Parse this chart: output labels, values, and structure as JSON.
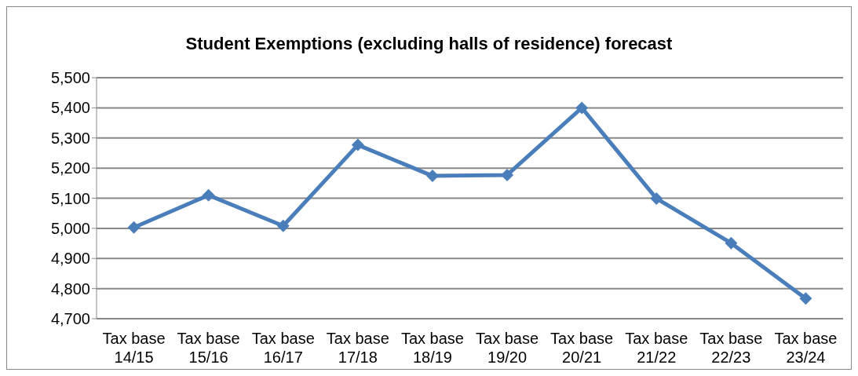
{
  "chart_data": {
    "type": "line",
    "title": "Student Exemptions (excluding halls of residence) forecast",
    "categories": [
      "Tax base 14/15",
      "Tax base 15/16",
      "Tax base 16/17",
      "Tax base 17/18",
      "Tax base 18/19",
      "Tax base 19/20",
      "Tax base 20/21",
      "Tax base 21/22",
      "Tax base 22/23",
      "Tax base 23/24"
    ],
    "series": [
      {
        "color": "#4a7ebb",
        "values": [
          5003,
          5110,
          5008,
          5277,
          5174,
          5177,
          5400,
          5099,
          4951,
          4767
        ]
      }
    ],
    "ylim": [
      4700,
      5500
    ],
    "yticks": [
      {
        "value": 4700,
        "label": "4,700"
      },
      {
        "value": 4800,
        "label": "4,800"
      },
      {
        "value": 4900,
        "label": "4,900"
      },
      {
        "value": 5000,
        "label": "5,000"
      },
      {
        "value": 5100,
        "label": "5,100"
      },
      {
        "value": 5200,
        "label": "5,200"
      },
      {
        "value": 5300,
        "label": "5,300"
      },
      {
        "value": 5400,
        "label": "5,400"
      },
      {
        "value": 5500,
        "label": "5,500"
      }
    ],
    "grid": "y",
    "legend": false,
    "marker": "diamond",
    "line_style": "solid"
  }
}
